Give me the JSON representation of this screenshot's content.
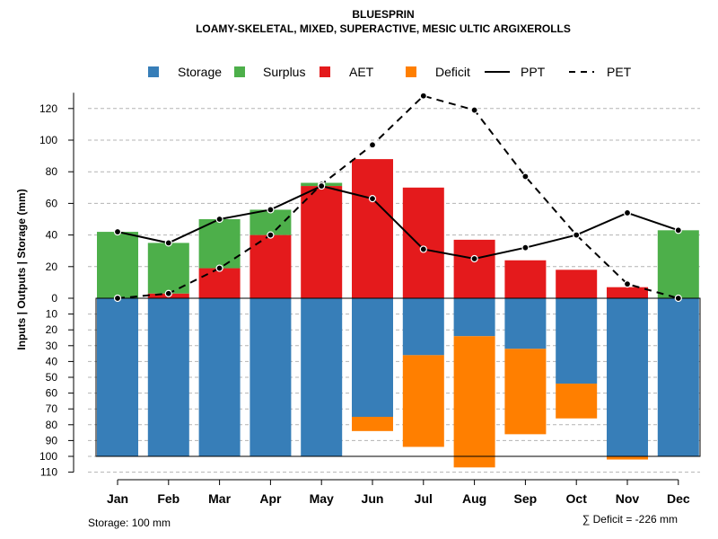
{
  "chart_data": {
    "type": "bar",
    "title": "BLUESPRIN",
    "subtitle": "LOAMY-SKELETAL, MIXED, SUPERACTIVE, MESIC ULTIC ARGIXEROLLS",
    "ylabel": "Inputs | Outputs | Storage    (mm)",
    "categories": [
      "Jan",
      "Feb",
      "Mar",
      "Apr",
      "May",
      "Jun",
      "Jul",
      "Aug",
      "Sep",
      "Oct",
      "Nov",
      "Dec"
    ],
    "upper_ticks": [
      0,
      20,
      40,
      60,
      80,
      100,
      120
    ],
    "lower_ticks": [
      10,
      20,
      30,
      40,
      50,
      60,
      70,
      80,
      90,
      100,
      110
    ],
    "lower_tick_labels": [
      "10",
      "20",
      "30",
      "40",
      "50",
      "60",
      "70",
      "80",
      "90",
      "100",
      "110"
    ],
    "ylim": [
      -110,
      130
    ],
    "storage_capacity": 100,
    "series": [
      {
        "name": "Storage",
        "color": "#377eb8",
        "values": [
          100,
          100,
          100,
          100,
          100,
          75,
          36,
          24,
          32,
          54,
          100,
          100
        ]
      },
      {
        "name": "Surplus",
        "color": "#4daf4a",
        "values": [
          42,
          32,
          31,
          16,
          2,
          0,
          0,
          0,
          0,
          0,
          0,
          43
        ]
      },
      {
        "name": "AET",
        "color": "#e41a1c",
        "values": [
          0,
          3,
          19,
          40,
          71,
          88,
          70,
          37,
          24,
          18,
          7,
          0
        ]
      },
      {
        "name": "Deficit",
        "color": "#ff7f00",
        "values": [
          0,
          0,
          0,
          0,
          0,
          9,
          58,
          83,
          54,
          22,
          2,
          0
        ]
      },
      {
        "name": "PPT",
        "color": "#000000",
        "style": "solid",
        "values": [
          42,
          35,
          50,
          56,
          71,
          63,
          31,
          25,
          32,
          40,
          54,
          43
        ]
      },
      {
        "name": "PET",
        "color": "#000000",
        "style": "dashed",
        "values": [
          0,
          3,
          19,
          40,
          72,
          97,
          128,
          119,
          77,
          40,
          9,
          0
        ]
      }
    ],
    "legend": [
      "Storage",
      "Surplus",
      "AET",
      "Deficit",
      "PPT",
      "PET"
    ],
    "legend_position": "top",
    "grid": true,
    "footer_left": "Storage: 100 mm",
    "footer_right": "∑ Deficit = -226 mm"
  }
}
